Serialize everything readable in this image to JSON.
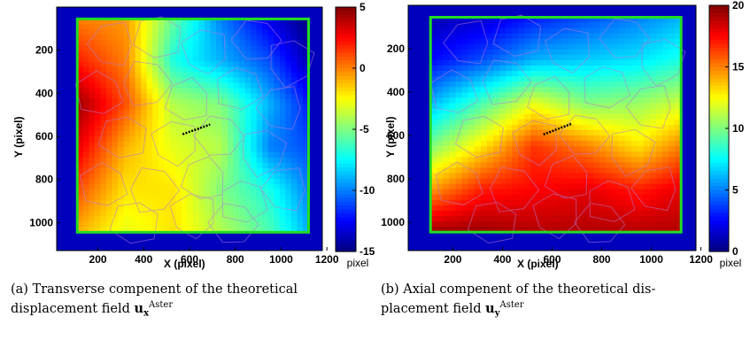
{
  "chart_data": [
    {
      "type": "heatmap",
      "xlabel": "X (pixel)",
      "ylabel": "Y (pixel)",
      "x_ticks": [
        "200",
        "400",
        "600",
        "800",
        "1000",
        "1200"
      ],
      "x_tick_values": [
        200,
        400,
        600,
        800,
        1000,
        1200
      ],
      "y_ticks": [
        "200",
        "400",
        "600",
        "800",
        "1000"
      ],
      "y_tick_values": [
        200,
        400,
        600,
        800,
        1000
      ],
      "xlim": [
        20,
        1180
      ],
      "ylim": [
        1130,
        0
      ],
      "roi": {
        "x": [
          110,
          1120
        ],
        "y": [
          55,
          1045
        ]
      },
      "crack_segment": [
        [
          570,
          590
        ],
        [
          690,
          545
        ]
      ],
      "colorbar": {
        "ticks": [
          "5",
          "0",
          "-5",
          "-10",
          "-15"
        ],
        "tick_values": [
          5,
          0,
          -5,
          -10,
          -15
        ],
        "range": [
          -15,
          5
        ],
        "unit": "pixel",
        "colormap": "jet"
      },
      "field": {
        "grid_x": [
          110,
          320,
          530,
          740,
          950,
          1120
        ],
        "grid_y": [
          55,
          250,
          450,
          650,
          850,
          1045
        ],
        "values": [
          [
            0,
            -0.5,
            -5.5,
            -10,
            -13,
            -15
          ],
          [
            2,
            0,
            -7,
            -9,
            -11,
            -14
          ],
          [
            4.5,
            1,
            -4,
            -5,
            -9,
            -12
          ],
          [
            3,
            -1,
            -3,
            -4,
            -10,
            -11
          ],
          [
            1,
            -2,
            -2,
            -5,
            -7,
            -10
          ],
          [
            -1,
            -3,
            -2,
            -4,
            -6,
            -9
          ]
        ]
      },
      "caption": {
        "label": "(a)",
        "line1": "Transverse compenent of the theoretical",
        "line2": "displacement field",
        "symbol": "u",
        "sub": "x",
        "sup": "Aster"
      }
    },
    {
      "type": "heatmap",
      "xlabel": "X (pixel)",
      "ylabel": "Y (pixel)",
      "x_ticks": [
        "200",
        "400",
        "600",
        "800",
        "1000",
        "1200"
      ],
      "x_tick_values": [
        200,
        400,
        600,
        800,
        1000,
        1200
      ],
      "y_ticks": [
        "200",
        "400",
        "600",
        "800",
        "1000"
      ],
      "y_tick_values": [
        200,
        400,
        600,
        800,
        1000
      ],
      "xlim": [
        20,
        1180
      ],
      "ylim": [
        1130,
        0
      ],
      "roi": {
        "x": [
          110,
          1120
        ],
        "y": [
          55,
          1045
        ]
      },
      "crack_segment": [
        [
          565,
          595
        ],
        [
          680,
          545
        ]
      ],
      "colorbar": {
        "ticks": [
          "20",
          "15",
          "10",
          "5",
          "0"
        ],
        "tick_values": [
          20,
          15,
          10,
          5,
          0
        ],
        "range": [
          0,
          20
        ],
        "unit": "pixel",
        "colormap": "jet"
      },
      "field": {
        "grid_x": [
          110,
          320,
          530,
          740,
          950,
          1120
        ],
        "grid_y": [
          55,
          250,
          450,
          650,
          850,
          1045
        ],
        "values": [
          [
            1,
            1.5,
            3,
            4,
            5,
            6
          ],
          [
            2.5,
            4,
            6,
            6.5,
            7,
            8
          ],
          [
            6,
            9,
            12,
            10,
            10.5,
            11.5
          ],
          [
            10,
            13,
            16.5,
            15,
            13,
            15
          ],
          [
            14.5,
            17,
            17.5,
            18,
            17,
            18
          ],
          [
            19.5,
            19.5,
            19,
            19,
            19,
            19
          ]
        ]
      },
      "caption": {
        "label": "(b)",
        "line1": "Axial compenent of the theoretical dis-",
        "line2": "placement field",
        "symbol": "u",
        "sub": "y",
        "sup": "Aster"
      }
    }
  ]
}
